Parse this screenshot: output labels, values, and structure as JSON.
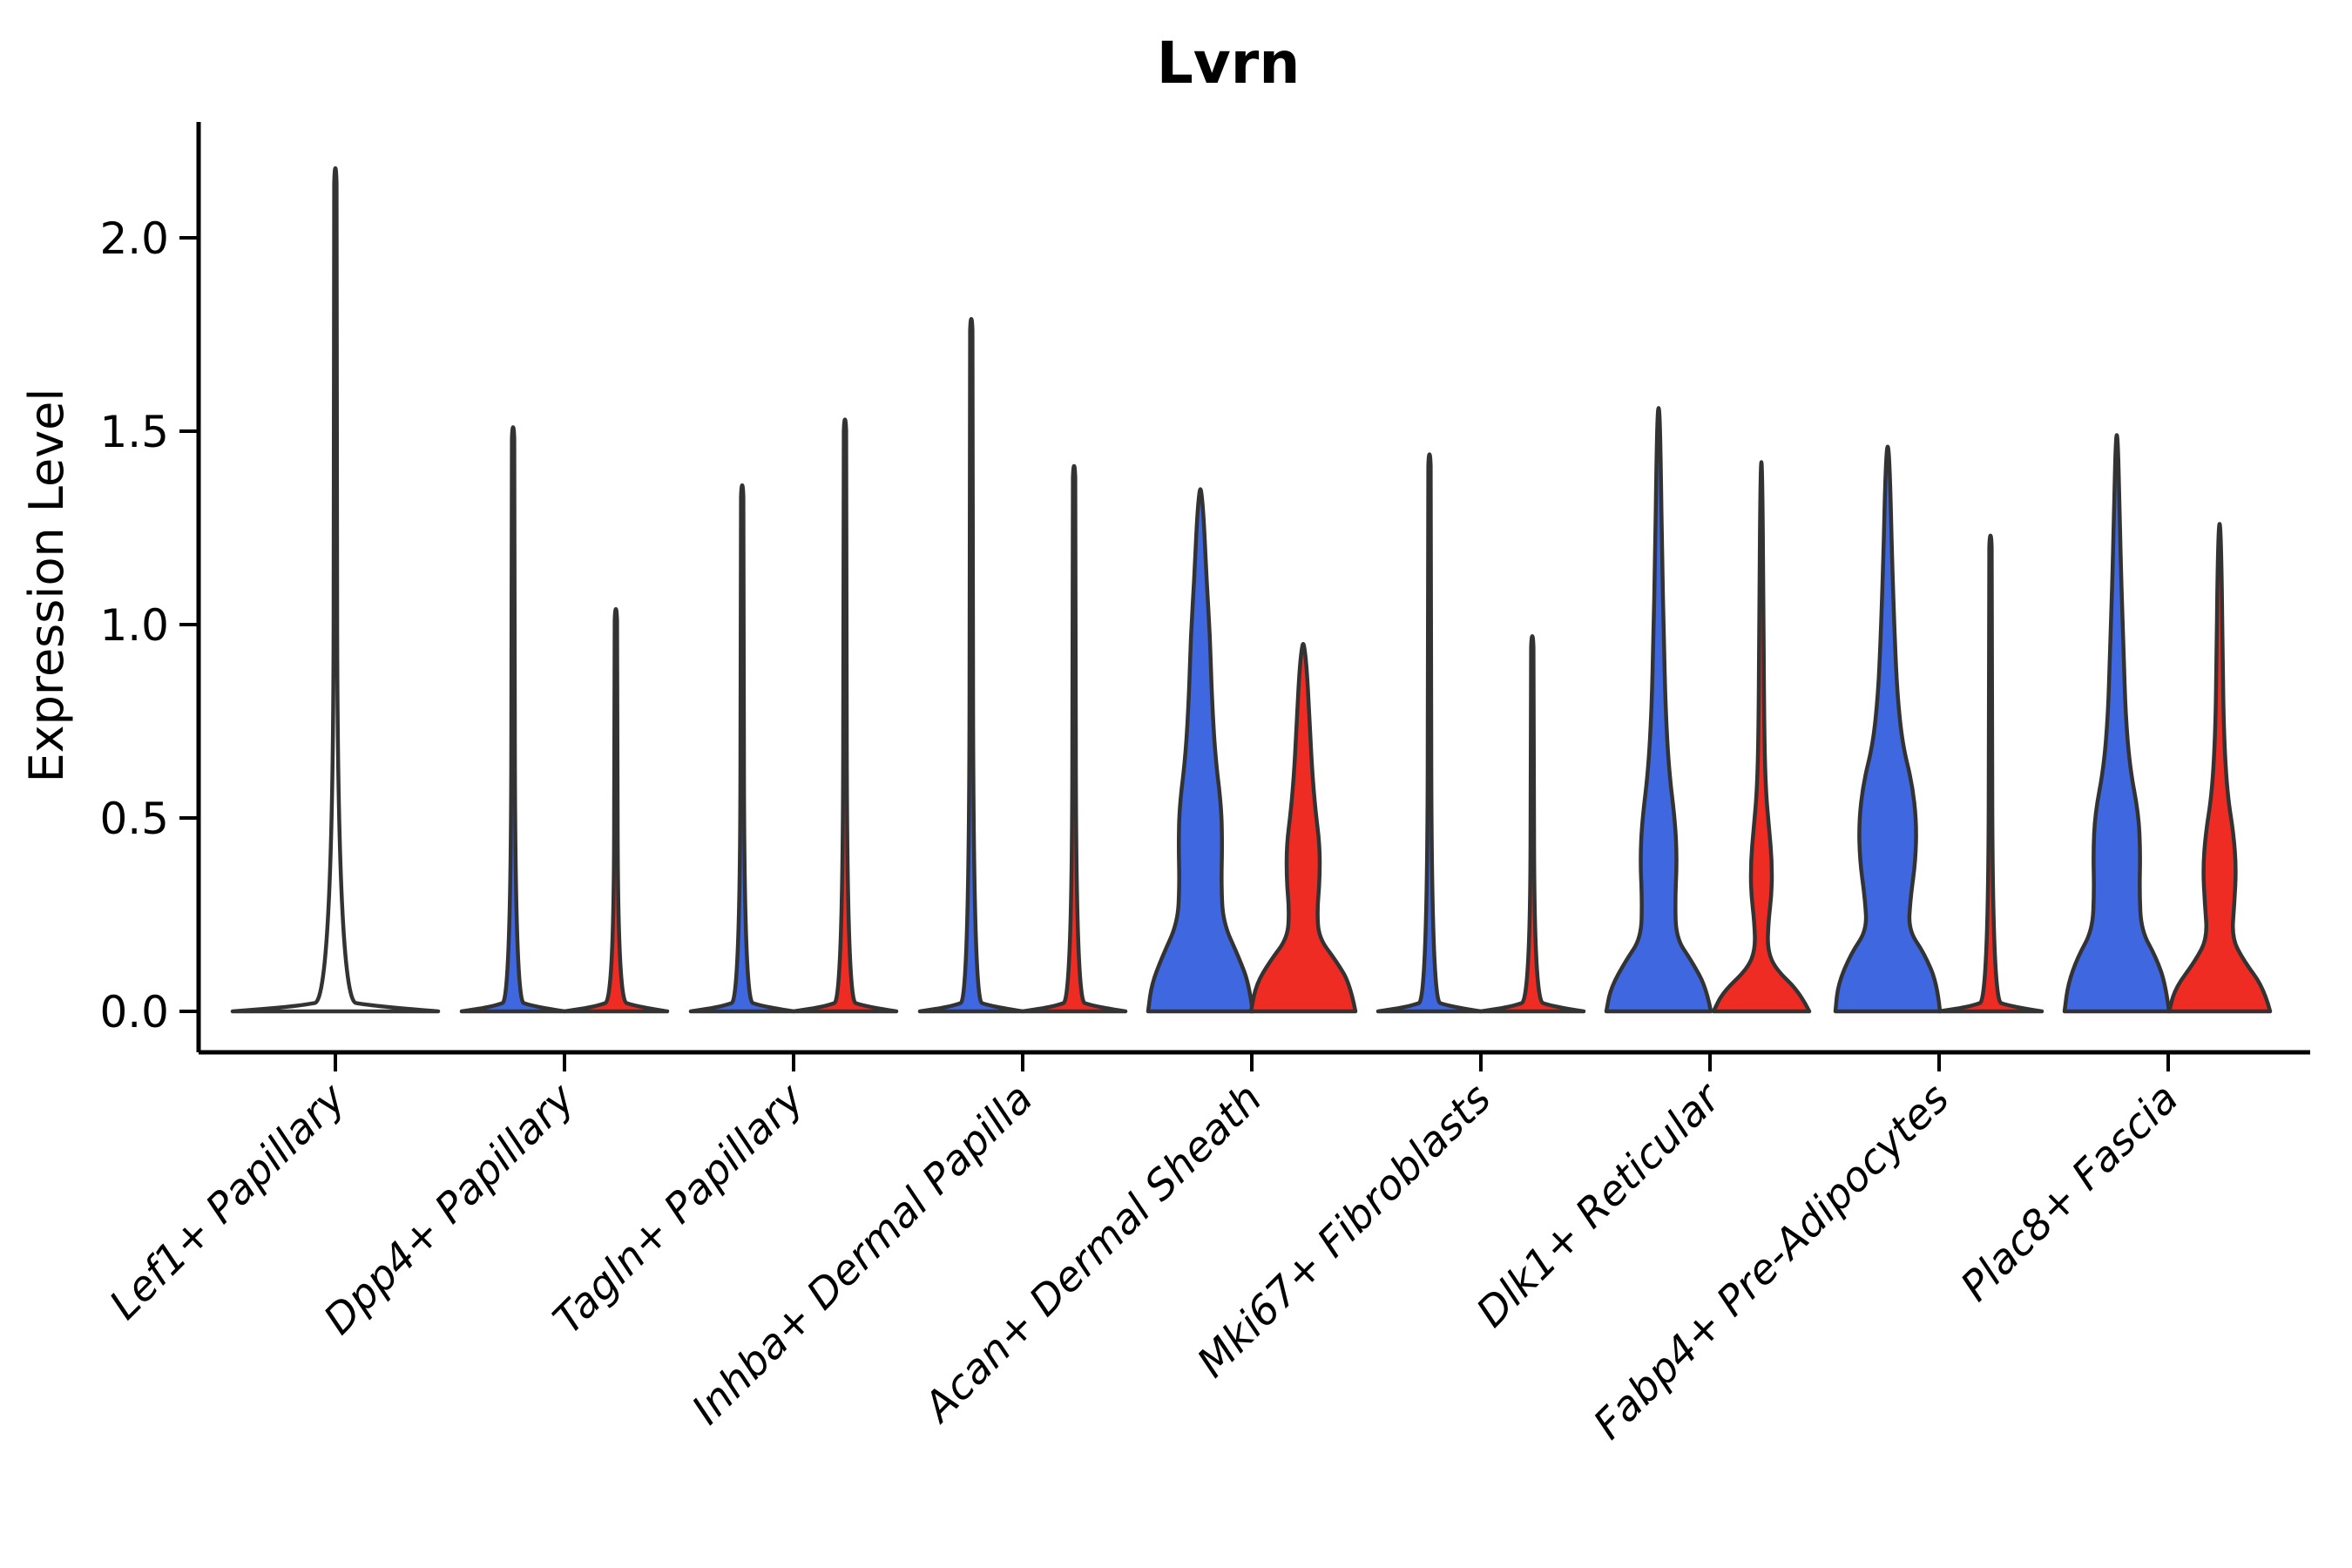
{
  "chart_data": {
    "type": "violin",
    "title": "Lvrn",
    "ylabel": "Expression Level",
    "ylim": [
      -0.11,
      2.3
    ],
    "grid": false,
    "legend": "none",
    "ytick_labels": [
      "0.0",
      "0.5",
      "1.0",
      "1.5",
      "2.0"
    ],
    "ytick_values": [
      0.0,
      0.5,
      1.0,
      1.5,
      2.0
    ],
    "xtick_rotation_deg": 45,
    "palette": {
      "blue": "#3F68E0",
      "red": "#EE2C23",
      "outline_only": "#3a3a3a",
      "stroke": "#333333"
    },
    "categories": [
      "Lef1+ Papillary",
      "Dpp4+ Papillary",
      "Tagln+ Papillary",
      "Inhba+ Dermal Papilla",
      "Acan+ Dermal Sheath",
      "Mki67+ Fibroblasts",
      "Dlk1+ Reticular",
      "Fabp4+ Pre-Adipocytes",
      "Plac8+ Fascia"
    ],
    "groups": [
      {
        "category": "Lef1+ Papillary",
        "violins": [
          {
            "split": "solo",
            "color": "outline_only",
            "peak": 2.18,
            "profile": [
              [
                0,
                118
              ],
              [
                0.013,
                45
              ],
              [
                0.03,
                2.2
              ],
              [
                2.1,
                1.8
              ],
              [
                2.18,
                0.9
              ]
            ]
          }
        ]
      },
      {
        "category": "Dpp4+ Papillary",
        "violins": [
          {
            "split": "left",
            "color": "blue",
            "peak": 1.51,
            "profile": [
              [
                0,
                59
              ],
              [
                0.013,
                22
              ],
              [
                0.03,
                2.2
              ],
              [
                1.45,
                1.8
              ],
              [
                1.51,
                0.9
              ]
            ]
          },
          {
            "split": "right",
            "color": "red",
            "peak": 1.04,
            "profile": [
              [
                0,
                59
              ],
              [
                0.013,
                22
              ],
              [
                0.03,
                2.2
              ],
              [
                0.98,
                1.8
              ],
              [
                1.04,
                0.9
              ]
            ]
          }
        ]
      },
      {
        "category": "Tagln+ Papillary",
        "violins": [
          {
            "split": "left",
            "color": "blue",
            "peak": 1.36,
            "profile": [
              [
                0,
                59
              ],
              [
                0.013,
                22
              ],
              [
                0.03,
                2.2
              ],
              [
                1.3,
                1.8
              ],
              [
                1.36,
                0.9
              ]
            ]
          },
          {
            "split": "right",
            "color": "red",
            "peak": 1.53,
            "profile": [
              [
                0,
                59
              ],
              [
                0.013,
                22
              ],
              [
                0.03,
                2.2
              ],
              [
                1.47,
                1.8
              ],
              [
                1.53,
                0.9
              ]
            ]
          }
        ]
      },
      {
        "category": "Inhba+ Dermal Papilla",
        "violins": [
          {
            "split": "left",
            "color": "blue",
            "peak": 1.79,
            "profile": [
              [
                0,
                59
              ],
              [
                0.013,
                22
              ],
              [
                0.03,
                2.2
              ],
              [
                1.73,
                1.8
              ],
              [
                1.79,
                0.9
              ]
            ]
          },
          {
            "split": "right",
            "color": "red",
            "peak": 1.41,
            "profile": [
              [
                0,
                59
              ],
              [
                0.013,
                22
              ],
              [
                0.03,
                2.2
              ],
              [
                1.35,
                1.8
              ],
              [
                1.41,
                0.9
              ]
            ]
          }
        ]
      },
      {
        "category": "Acan+ Dermal Sheath",
        "violins": [
          {
            "split": "left",
            "color": "blue",
            "peak": 1.35,
            "profile": [
              [
                0,
                60
              ],
              [
                0.07,
                56
              ],
              [
                0.14,
                44
              ],
              [
                0.23,
                26
              ],
              [
                0.33,
                24
              ],
              [
                0.43,
                25
              ],
              [
                0.53,
                24
              ],
              [
                0.66,
                17
              ],
              [
                0.82,
                13
              ],
              [
                0.97,
                11
              ],
              [
                1.12,
                7
              ],
              [
                1.27,
                4
              ],
              [
                1.35,
                1
              ]
            ]
          },
          {
            "split": "right",
            "color": "red",
            "peak": 0.95,
            "profile": [
              [
                0,
                60
              ],
              [
                0.07,
                54
              ],
              [
                0.13,
                38
              ],
              [
                0.19,
                18
              ],
              [
                0.26,
                16
              ],
              [
                0.34,
                19
              ],
              [
                0.43,
                19
              ],
              [
                0.52,
                14
              ],
              [
                0.63,
                10
              ],
              [
                0.77,
                7
              ],
              [
                0.89,
                4
              ],
              [
                0.95,
                1
              ]
            ]
          }
        ]
      },
      {
        "category": "Mki67+ Fibroblasts",
        "violins": [
          {
            "split": "left",
            "color": "blue",
            "peak": 1.44,
            "profile": [
              [
                0,
                59
              ],
              [
                0.013,
                22
              ],
              [
                0.03,
                2.2
              ],
              [
                1.38,
                1.8
              ],
              [
                1.44,
                0.9
              ]
            ]
          },
          {
            "split": "right",
            "color": "red",
            "peak": 0.97,
            "profile": [
              [
                0,
                59
              ],
              [
                0.013,
                22
              ],
              [
                0.03,
                2.2
              ],
              [
                0.91,
                1.8
              ],
              [
                0.97,
                0.9
              ]
            ]
          }
        ]
      },
      {
        "category": "Dlk1+ Reticular",
        "violins": [
          {
            "split": "left",
            "color": "blue",
            "peak": 1.56,
            "profile": [
              [
                0,
                60
              ],
              [
                0.06,
                55
              ],
              [
                0.13,
                38
              ],
              [
                0.19,
                20
              ],
              [
                0.29,
                19
              ],
              [
                0.39,
                21
              ],
              [
                0.49,
                19
              ],
              [
                0.62,
                12
              ],
              [
                0.78,
                8
              ],
              [
                0.97,
                6
              ],
              [
                1.17,
                4
              ],
              [
                1.42,
                2.5
              ],
              [
                1.56,
                1
              ]
            ]
          },
          {
            "split": "right",
            "color": "red",
            "peak": 1.42,
            "profile": [
              [
                0,
                55
              ],
              [
                0.05,
                44
              ],
              [
                0.11,
                16
              ],
              [
                0.16,
                7
              ],
              [
                0.23,
                8
              ],
              [
                0.31,
                12
              ],
              [
                0.39,
                12
              ],
              [
                0.47,
                9
              ],
              [
                0.57,
                5
              ],
              [
                0.73,
                3.2
              ],
              [
                1.05,
                2.4
              ],
              [
                1.42,
                0.9
              ]
            ]
          }
        ]
      },
      {
        "category": "Fabp4+ Pre-Adipocytes",
        "violins": [
          {
            "split": "left",
            "color": "blue",
            "peak": 1.46,
            "profile": [
              [
                0,
                60
              ],
              [
                0.07,
                57
              ],
              [
                0.15,
                42
              ],
              [
                0.21,
                24
              ],
              [
                0.29,
                26
              ],
              [
                0.39,
                32
              ],
              [
                0.49,
                33
              ],
              [
                0.59,
                28
              ],
              [
                0.69,
                17
              ],
              [
                0.82,
                11
              ],
              [
                0.97,
                8
              ],
              [
                1.17,
                5
              ],
              [
                1.36,
                3
              ],
              [
                1.46,
                1
              ]
            ]
          },
          {
            "split": "right",
            "color": "red",
            "peak": 1.23,
            "profile": [
              [
                0,
                59
              ],
              [
                0.013,
                22
              ],
              [
                0.03,
                2.2
              ],
              [
                1.17,
                1.8
              ],
              [
                1.23,
                0.9
              ]
            ]
          }
        ]
      },
      {
        "category": "Plac8+ Fascia",
        "violins": [
          {
            "split": "left",
            "color": "blue",
            "peak": 1.49,
            "profile": [
              [
                0,
                60
              ],
              [
                0.07,
                56
              ],
              [
                0.14,
                45
              ],
              [
                0.21,
                28
              ],
              [
                0.31,
                26
              ],
              [
                0.41,
                27
              ],
              [
                0.51,
                25
              ],
              [
                0.63,
                15
              ],
              [
                0.77,
                10
              ],
              [
                0.92,
                8
              ],
              [
                1.12,
                5
              ],
              [
                1.32,
                3
              ],
              [
                1.49,
                1
              ]
            ]
          },
          {
            "split": "right",
            "color": "red",
            "peak": 1.26,
            "profile": [
              [
                0,
                58
              ],
              [
                0.06,
                51
              ],
              [
                0.13,
                28
              ],
              [
                0.19,
                14
              ],
              [
                0.28,
                17
              ],
              [
                0.37,
                19
              ],
              [
                0.46,
                16
              ],
              [
                0.56,
                9
              ],
              [
                0.71,
                5
              ],
              [
                0.91,
                3.5
              ],
              [
                1.12,
                2.5
              ],
              [
                1.26,
                0.9
              ]
            ]
          }
        ]
      }
    ]
  }
}
